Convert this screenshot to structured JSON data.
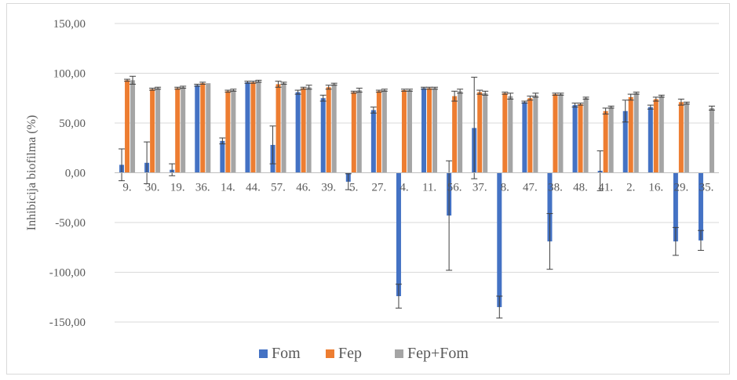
{
  "chart_data": {
    "type": "bar",
    "title": "",
    "xlabel": "",
    "ylabel": "Inhibicija biofilma (%)",
    "ylim": [
      -150,
      150
    ],
    "yticks": [
      -150,
      -100,
      -50,
      0,
      50,
      100,
      150
    ],
    "ytick_labels": [
      "-150,00",
      "-100,00",
      "-50,00",
      "0,00",
      "50,00",
      "100,00",
      "150,00"
    ],
    "grid": true,
    "legend_position": "bottom",
    "categories": [
      "9.",
      "30.",
      "19.",
      "36.",
      "14.",
      "44.",
      "57.",
      "46.",
      "39.",
      "5.",
      "27.",
      "4.",
      "11.",
      "56.",
      "37.",
      "8.",
      "47.",
      "38.",
      "48.",
      "41.",
      "2.",
      "16.",
      "29.",
      "35."
    ],
    "series": [
      {
        "name": "Fom",
        "color": "#4472c4",
        "values": [
          8,
          10,
          3,
          88,
          32,
          91,
          28,
          81,
          75,
          -9,
          63,
          -124,
          85,
          -43,
          45,
          -135,
          71,
          -69,
          68,
          2,
          62,
          66,
          -69,
          -68
        ],
        "errors": [
          16,
          21,
          6,
          1,
          3,
          1,
          19,
          2,
          3,
          8,
          3,
          12,
          1,
          55,
          51,
          11,
          1,
          28,
          2,
          20,
          11,
          2,
          14,
          10
        ]
      },
      {
        "name": "Fep",
        "color": "#ed7d31",
        "values": [
          93,
          84,
          85,
          90,
          82,
          91,
          89,
          85,
          86,
          81,
          82,
          83,
          85,
          77,
          81,
          80,
          75,
          79,
          69,
          62,
          76,
          74,
          71,
          0
        ],
        "errors": [
          1,
          1,
          1,
          1,
          1,
          1,
          3,
          1,
          2,
          1,
          1,
          1,
          1,
          5,
          2,
          1,
          2,
          1,
          1,
          3,
          3,
          2,
          3,
          0
        ]
      },
      {
        "name": "Fep+Fom",
        "color": "#a5a5a5",
        "values": [
          93,
          85,
          86,
          90,
          83,
          92,
          90,
          86,
          89,
          83,
          83,
          83,
          85,
          82,
          80,
          77,
          78,
          79,
          75,
          66,
          80,
          77,
          70,
          65
        ],
        "errors": [
          4,
          1,
          1,
          0,
          1,
          1,
          1,
          2,
          1,
          2,
          1,
          1,
          1,
          2,
          2,
          3,
          2,
          1,
          1,
          1,
          1,
          1,
          1,
          2
        ]
      }
    ]
  }
}
